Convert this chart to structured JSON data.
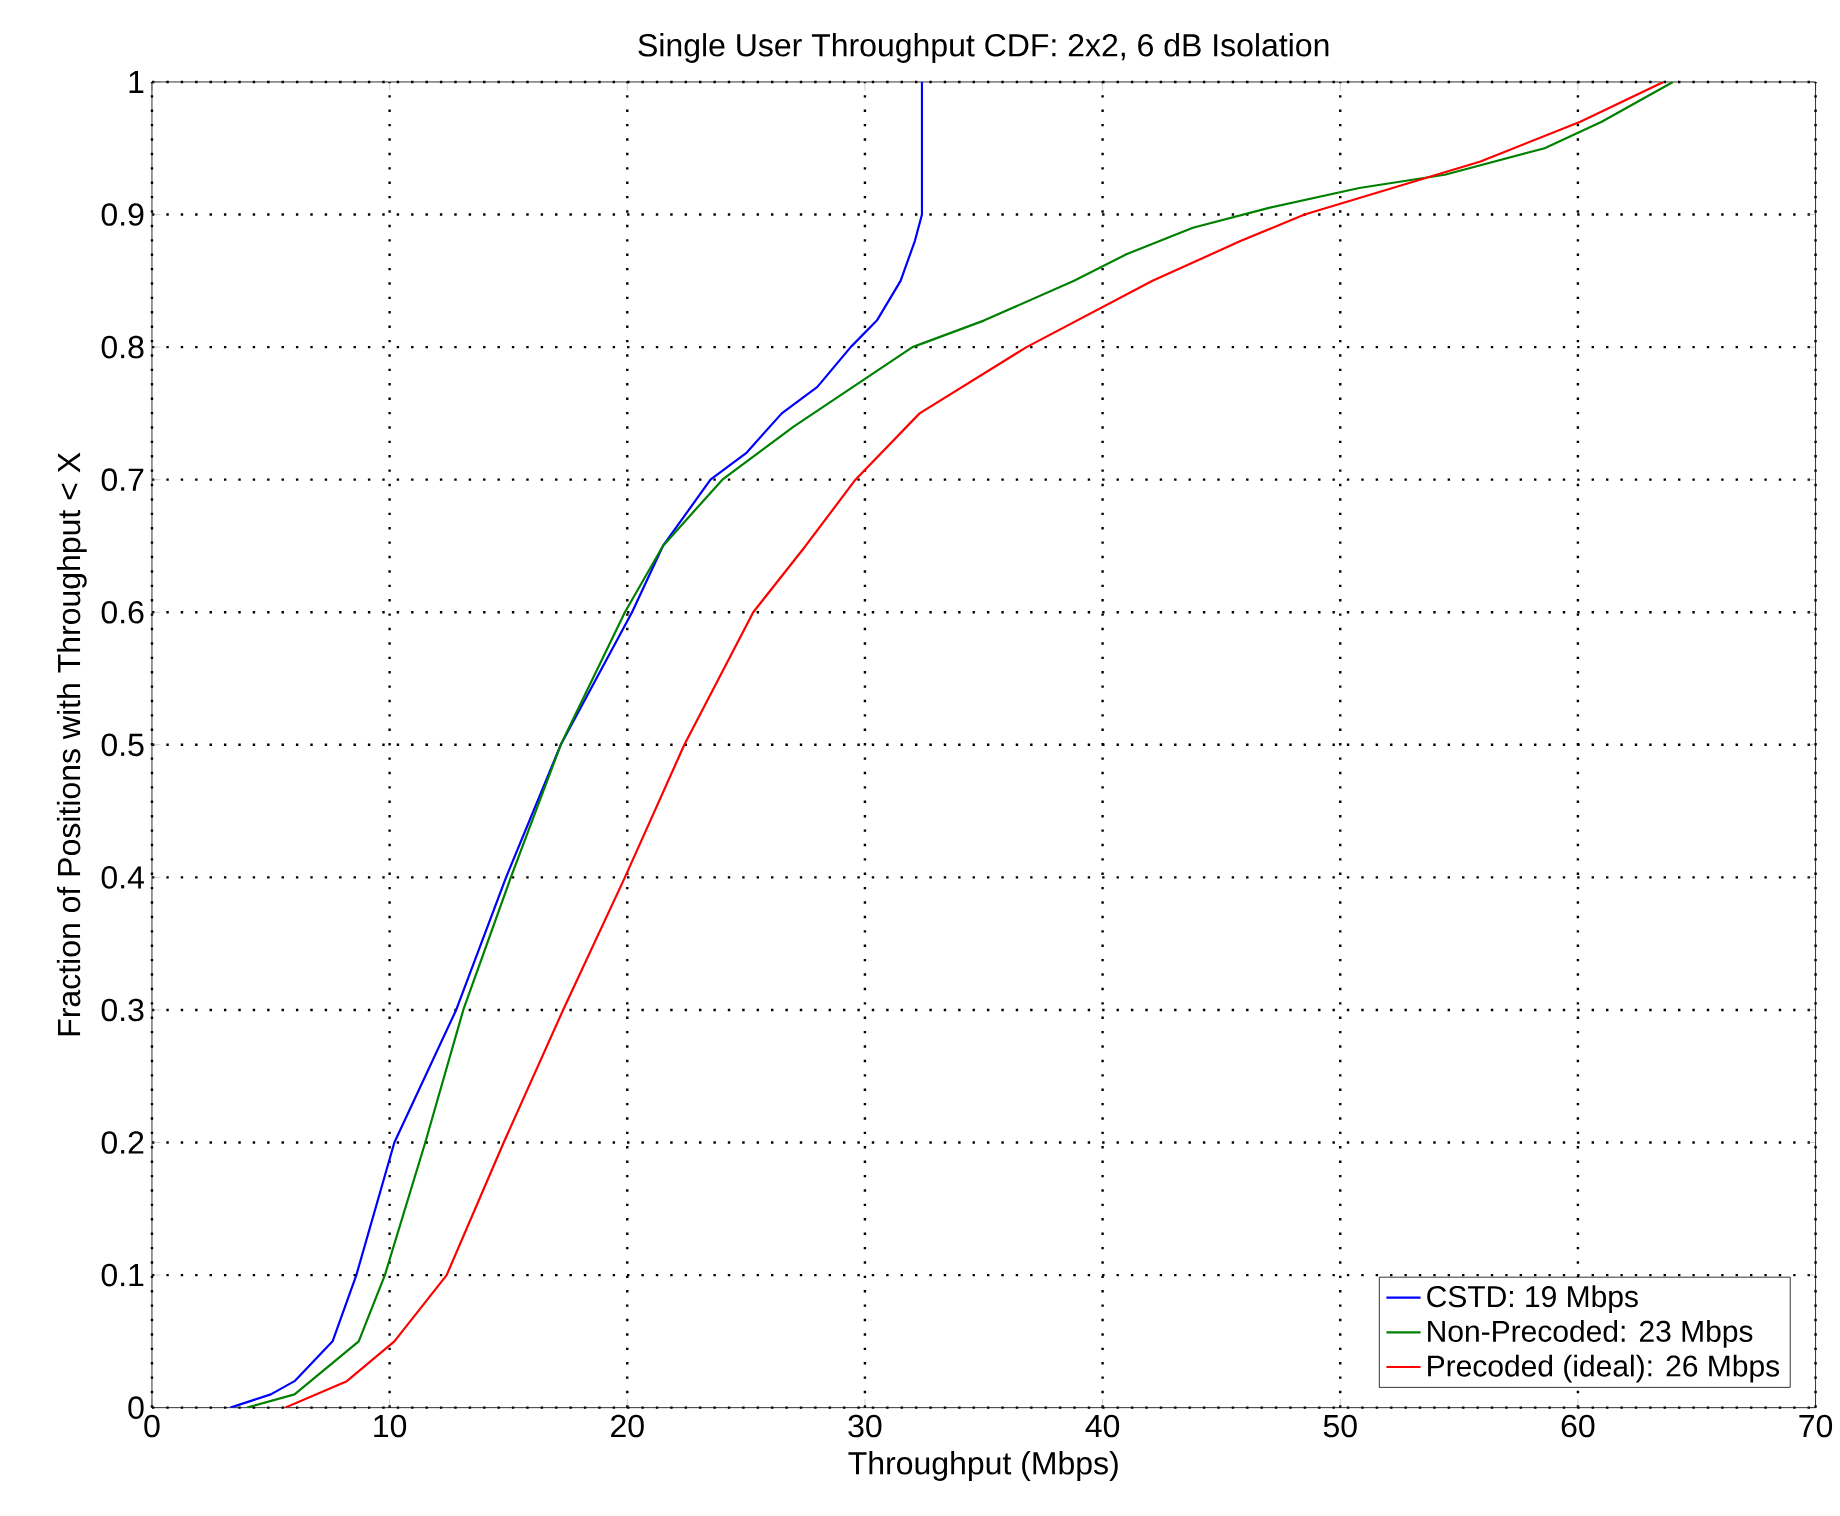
{
  "chart_data": {
    "type": "line",
    "title": "Single User Throughput CDF: 2x2, 6 dB Isolation",
    "xlabel": "Throughput (Mbps)",
    "ylabel": "Fraction of Positions with Throughput < X",
    "xlim": [
      0,
      70
    ],
    "ylim": [
      0,
      1
    ],
    "xticks": [
      0,
      10,
      20,
      30,
      40,
      50,
      60,
      70
    ],
    "yticks": [
      0,
      0.1,
      0.2,
      0.3,
      0.4,
      0.5,
      0.6,
      0.7,
      0.8,
      0.9,
      1
    ],
    "grid": true,
    "legend": "bottom right",
    "marker": "none",
    "series": [
      {
        "name": "CSTD: 19 Mbps",
        "color": "#0000ff",
        "x": [
          3.3,
          5,
          6,
          7.6,
          8.6,
          10.2,
          12.8,
          14.9,
          17.2,
          20.2,
          21.5,
          23.5,
          25,
          26.5,
          28,
          29.4,
          30.5,
          31.5,
          32.1,
          32.4,
          32.4
        ],
        "values": [
          0,
          0.01,
          0.02,
          0.05,
          0.1,
          0.2,
          0.3,
          0.4,
          0.5,
          0.6,
          0.65,
          0.7,
          0.72,
          0.75,
          0.77,
          0.8,
          0.82,
          0.85,
          0.88,
          0.9,
          1
        ]
      },
      {
        "name": "Non-Precoded: 23 Mbps",
        "color": "#008000",
        "x": [
          4,
          6,
          8.7,
          9.8,
          11.5,
          13.1,
          15.1,
          17.2,
          19.9,
          21.5,
          24,
          27,
          29.5,
          32,
          35,
          38.8,
          41,
          43.8,
          47,
          50.8,
          54.4,
          58.6,
          61,
          64
        ],
        "values": [
          0,
          0.01,
          0.05,
          0.1,
          0.2,
          0.3,
          0.4,
          0.5,
          0.6,
          0.65,
          0.7,
          0.74,
          0.77,
          0.8,
          0.82,
          0.85,
          0.87,
          0.89,
          0.905,
          0.92,
          0.93,
          0.95,
          0.97,
          1
        ]
      },
      {
        "name": "Precoded (ideal): 26 Mbps",
        "color": "#ff0000",
        "x": [
          5.6,
          8.2,
          10.2,
          12.4,
          14.8,
          17.3,
          19.9,
          22.4,
          25.3,
          27.5,
          29.6,
          32.3,
          36.8,
          42.1,
          45.8,
          48.5,
          52.2,
          55.9,
          60.1,
          63.6
        ],
        "values": [
          0,
          0.02,
          0.05,
          0.1,
          0.2,
          0.3,
          0.4,
          0.5,
          0.6,
          0.65,
          0.7,
          0.75,
          0.8,
          0.85,
          0.88,
          0.9,
          0.92,
          0.94,
          0.97,
          1
        ]
      }
    ]
  }
}
